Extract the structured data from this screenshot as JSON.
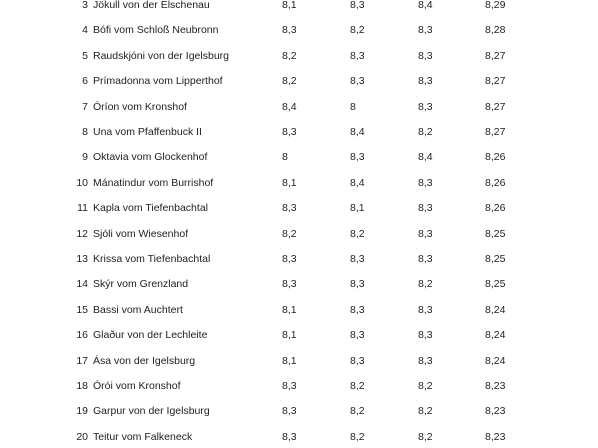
{
  "table": {
    "rows": [
      [
        "3",
        "Jökull von der Elschenau",
        "8,1",
        "8,3",
        "8,4",
        "8,29"
      ],
      [
        "4",
        "Bófi vom Schloß Neubronn",
        "8,3",
        "8,2",
        "8,3",
        "8,28"
      ],
      [
        "5",
        "Raudskjóni von der Igelsburg",
        "8,2",
        "8,3",
        "8,3",
        "8,27"
      ],
      [
        "6",
        "Prímadonna vom Lipperthof",
        "8,2",
        "8,3",
        "8,3",
        "8,27"
      ],
      [
        "7",
        "Óríon vom Kronshof",
        "8,4",
        "8",
        "8,3",
        "8,27"
      ],
      [
        "8",
        "Una vom Pfaffenbuck II",
        "8,3",
        "8,4",
        "8,2",
        "8,27"
      ],
      [
        "9",
        "Oktavia vom Glockenhof",
        "8",
        "8,3",
        "8,4",
        "8,26"
      ],
      [
        "10",
        "Mánatindur vom Burrishof",
        "8,1",
        "8,4",
        "8,3",
        "8,26"
      ],
      [
        "11",
        "Kapla vom Tiefenbachtal",
        "8,3",
        "8,1",
        "8,3",
        "8,26"
      ],
      [
        "12",
        "Sjóli vom Wiesenhof",
        "8,2",
        "8,2",
        "8,3",
        "8,25"
      ],
      [
        "13",
        "Krissa vom Tiefenbachtal",
        "8,3",
        "8,3",
        "8,3",
        "8,25"
      ],
      [
        "14",
        "Skýr vom Grenzland",
        "8,3",
        "8,3",
        "8,2",
        "8,25"
      ],
      [
        "15",
        "Bassi vom Auchtert",
        "8,1",
        "8,3",
        "8,3",
        "8,24"
      ],
      [
        "16",
        "Glaður von der Lechleite",
        "8,1",
        "8,3",
        "8,3",
        "8,24"
      ],
      [
        "17",
        "Ása von der Igelsburg",
        "8,1",
        "8,3",
        "8,3",
        "8,24"
      ],
      [
        "18",
        "Órói vom Kronshof",
        "8,3",
        "8,2",
        "8,2",
        "8,23"
      ],
      [
        "19",
        "Garpur von der Igelsburg",
        "8,3",
        "8,2",
        "8,2",
        "8,23"
      ],
      [
        "20",
        "Teitur vom Falkeneck",
        "8,3",
        "8,2",
        "8,2",
        "8,23"
      ]
    ]
  }
}
